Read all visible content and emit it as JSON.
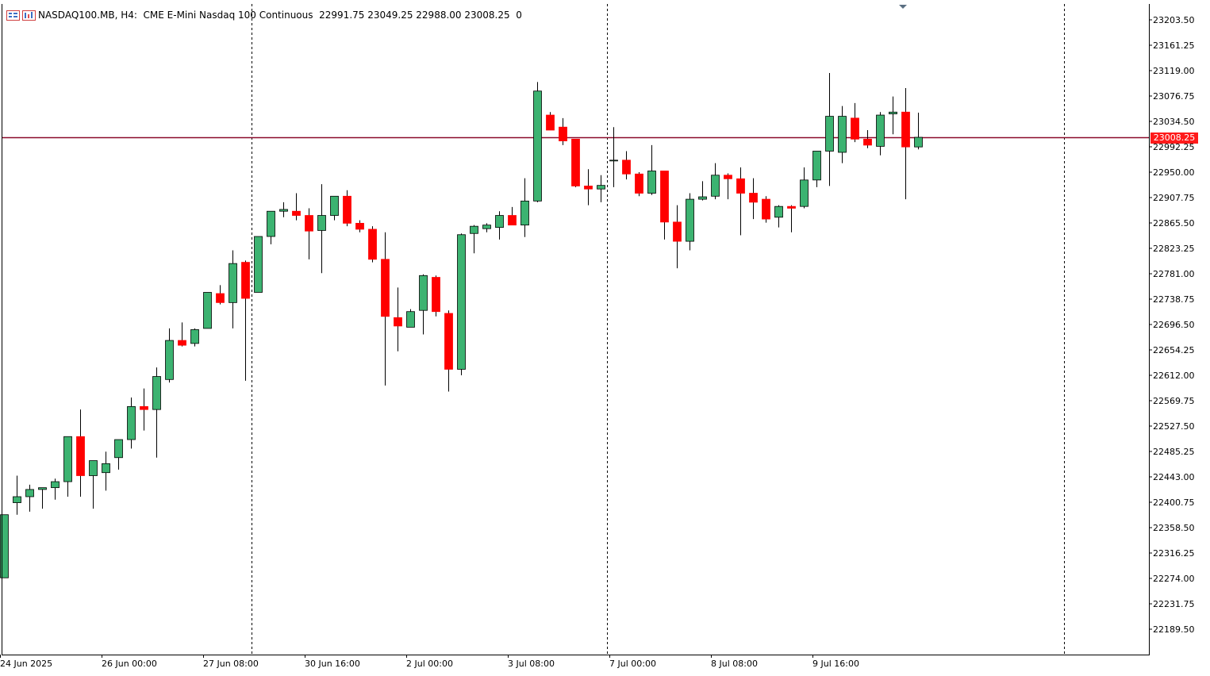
{
  "header": {
    "symbol_line": "NASDAQ100.MB, H4:  CME E-Mini Nasdaq 100 Continuous",
    "ohlc_line": "22991.75 23049.25 22988.00 23008.25  0",
    "icon_left": "chart-list-icon",
    "icon_right": "chart-properties-icon"
  },
  "current_price": {
    "label": "23008.25",
    "value": 23008.25,
    "line_color": "#8b0a2a",
    "tag_color": "#ff1a1a"
  },
  "colors": {
    "bull": "#3cb371",
    "bear": "#ff0000",
    "wick": "#000000"
  },
  "chart_data": {
    "type": "candlestick",
    "title": "NASDAQ100.MB, H4: CME E-Mini Nasdaq 100 Continuous",
    "timeframe": "H4",
    "ylim": [
      22163,
      23230
    ],
    "y_ticks": [
      "23203.50",
      "23161.25",
      "23119.00",
      "23076.75",
      "23034.50",
      "22992.25",
      "22950.00",
      "22907.75",
      "22865.50",
      "22823.25",
      "22781.00",
      "22738.75",
      "22696.50",
      "22654.25",
      "22612.00",
      "22569.75",
      "22527.50",
      "22485.25",
      "22443.00",
      "22400.75",
      "22358.50",
      "22316.25",
      "22274.00",
      "22231.75",
      "22189.50"
    ],
    "x_labels": [
      {
        "label": "24 Jun 2025",
        "index": 0
      },
      {
        "label": "26 Jun 00:00",
        "index": 8
      },
      {
        "label": "27 Jun 08:00",
        "index": 16
      },
      {
        "label": "30 Jun 16:00",
        "index": 24
      },
      {
        "label": "2 Jul 00:00",
        "index": 32
      },
      {
        "label": "3 Jul 08:00",
        "index": 40
      },
      {
        "label": "7 Jul 00:00",
        "index": 48
      },
      {
        "label": "8 Jul 08:00",
        "index": 56
      },
      {
        "label": "9 Jul 16:00",
        "index": 64
      }
    ],
    "separators_after_index": [
      19.5,
      47.5,
      83.5
    ],
    "grid": false,
    "candles": [
      {
        "o": 22275,
        "h": 22380,
        "l": 22275,
        "c": 22380
      },
      {
        "o": 22400,
        "h": 22445,
        "l": 22380,
        "c": 22410
      },
      {
        "o": 22410,
        "h": 22430,
        "l": 22385,
        "c": 22422
      },
      {
        "o": 22422,
        "h": 22425,
        "l": 22390,
        "c": 22425
      },
      {
        "o": 22425,
        "h": 22440,
        "l": 22405,
        "c": 22435
      },
      {
        "o": 22435,
        "h": 22510,
        "l": 22410,
        "c": 22510
      },
      {
        "o": 22510,
        "h": 22555,
        "l": 22410,
        "c": 22445
      },
      {
        "o": 22445,
        "h": 22470,
        "l": 22390,
        "c": 22470
      },
      {
        "o": 22450,
        "h": 22485,
        "l": 22420,
        "c": 22465
      },
      {
        "o": 22475,
        "h": 22505,
        "l": 22455,
        "c": 22505
      },
      {
        "o": 22505,
        "h": 22575,
        "l": 22490,
        "c": 22560
      },
      {
        "o": 22560,
        "h": 22590,
        "l": 22520,
        "c": 22555
      },
      {
        "o": 22555,
        "h": 22625,
        "l": 22475,
        "c": 22610
      },
      {
        "o": 22605,
        "h": 22690,
        "l": 22600,
        "c": 22670
      },
      {
        "o": 22670,
        "h": 22700,
        "l": 22660,
        "c": 22662
      },
      {
        "o": 22665,
        "h": 22690,
        "l": 22660,
        "c": 22688
      },
      {
        "o": 22690,
        "h": 22750,
        "l": 22690,
        "c": 22750
      },
      {
        "o": 22748,
        "h": 22762,
        "l": 22730,
        "c": 22733
      },
      {
        "o": 22733,
        "h": 22820,
        "l": 22690,
        "c": 22798
      },
      {
        "o": 22800,
        "h": 22803,
        "l": 22603,
        "c": 22740
      },
      {
        "o": 22750,
        "h": 22843,
        "l": 22750,
        "c": 22843
      },
      {
        "o": 22843,
        "h": 22885,
        "l": 22830,
        "c": 22885
      },
      {
        "o": 22885,
        "h": 22900,
        "l": 22875,
        "c": 22888
      },
      {
        "o": 22885,
        "h": 22915,
        "l": 22870,
        "c": 22878
      },
      {
        "o": 22878,
        "h": 22890,
        "l": 22805,
        "c": 22852
      },
      {
        "o": 22853,
        "h": 22930,
        "l": 22782,
        "c": 22878
      },
      {
        "o": 22878,
        "h": 22910,
        "l": 22870,
        "c": 22910
      },
      {
        "o": 22910,
        "h": 22920,
        "l": 22860,
        "c": 22865
      },
      {
        "o": 22865,
        "h": 22870,
        "l": 22850,
        "c": 22855
      },
      {
        "o": 22855,
        "h": 22860,
        "l": 22800,
        "c": 22805
      },
      {
        "o": 22805,
        "h": 22850,
        "l": 22595,
        "c": 22710
      },
      {
        "o": 22708,
        "h": 22758,
        "l": 22652,
        "c": 22694
      },
      {
        "o": 22692,
        "h": 22722,
        "l": 22692,
        "c": 22718
      },
      {
        "o": 22720,
        "h": 22780,
        "l": 22680,
        "c": 22778
      },
      {
        "o": 22775,
        "h": 22778,
        "l": 22710,
        "c": 22718
      },
      {
        "o": 22715,
        "h": 22720,
        "l": 22585,
        "c": 22622
      },
      {
        "o": 22622,
        "h": 22848,
        "l": 22612,
        "c": 22846
      },
      {
        "o": 22848,
        "h": 22862,
        "l": 22815,
        "c": 22860
      },
      {
        "o": 22856,
        "h": 22865,
        "l": 22850,
        "c": 22862
      },
      {
        "o": 22858,
        "h": 22885,
        "l": 22838,
        "c": 22878
      },
      {
        "o": 22878,
        "h": 22892,
        "l": 22862,
        "c": 22862
      },
      {
        "o": 22862,
        "h": 22940,
        "l": 22842,
        "c": 22902
      },
      {
        "o": 22902,
        "h": 23100,
        "l": 22900,
        "c": 23085
      },
      {
        "o": 23045,
        "h": 23050,
        "l": 23020,
        "c": 23020
      },
      {
        "o": 23025,
        "h": 23040,
        "l": 22995,
        "c": 23002
      },
      {
        "o": 23005,
        "h": 23005,
        "l": 22925,
        "c": 22927
      },
      {
        "o": 22927,
        "h": 22955,
        "l": 22895,
        "c": 22922
      },
      {
        "o": 22922,
        "h": 22945,
        "l": 22900,
        "c": 22928
      },
      {
        "o": 22970,
        "h": 23025,
        "l": 22925,
        "c": 22970
      },
      {
        "o": 22970,
        "h": 22985,
        "l": 22938,
        "c": 22947
      },
      {
        "o": 22947,
        "h": 22950,
        "l": 22910,
        "c": 22915
      },
      {
        "o": 22915,
        "h": 22995,
        "l": 22912,
        "c": 22952
      },
      {
        "o": 22952,
        "h": 22952,
        "l": 22838,
        "c": 22867
      },
      {
        "o": 22867,
        "h": 22895,
        "l": 22790,
        "c": 22835
      },
      {
        "o": 22835,
        "h": 22915,
        "l": 22820,
        "c": 22905
      },
      {
        "o": 22905,
        "h": 22935,
        "l": 22903,
        "c": 22909
      },
      {
        "o": 22910,
        "h": 22965,
        "l": 22905,
        "c": 22945
      },
      {
        "o": 22945,
        "h": 22948,
        "l": 22905,
        "c": 22939
      },
      {
        "o": 22939,
        "h": 22958,
        "l": 22845,
        "c": 22915
      },
      {
        "o": 22915,
        "h": 22940,
        "l": 22872,
        "c": 22900
      },
      {
        "o": 22905,
        "h": 22910,
        "l": 22866,
        "c": 22872
      },
      {
        "o": 22875,
        "h": 22895,
        "l": 22858,
        "c": 22893
      },
      {
        "o": 22893,
        "h": 22895,
        "l": 22850,
        "c": 22890
      },
      {
        "o": 22893,
        "h": 22958,
        "l": 22890,
        "c": 22937
      },
      {
        "o": 22937,
        "h": 22985,
        "l": 22925,
        "c": 22985
      },
      {
        "o": 22985,
        "h": 23115,
        "l": 22927,
        "c": 23043
      },
      {
        "o": 22983,
        "h": 23060,
        "l": 22965,
        "c": 23043
      },
      {
        "o": 23040,
        "h": 23065,
        "l": 23000,
        "c": 23005
      },
      {
        "o": 23005,
        "h": 23020,
        "l": 22990,
        "c": 22995
      },
      {
        "o": 22993,
        "h": 23050,
        "l": 22978,
        "c": 23045
      },
      {
        "o": 23047,
        "h": 23076,
        "l": 23013,
        "c": 23050
      },
      {
        "o": 23050,
        "h": 23090,
        "l": 22905,
        "c": 22992
      },
      {
        "o": 22992,
        "h": 23049,
        "l": 22988,
        "c": 23008
      }
    ]
  }
}
